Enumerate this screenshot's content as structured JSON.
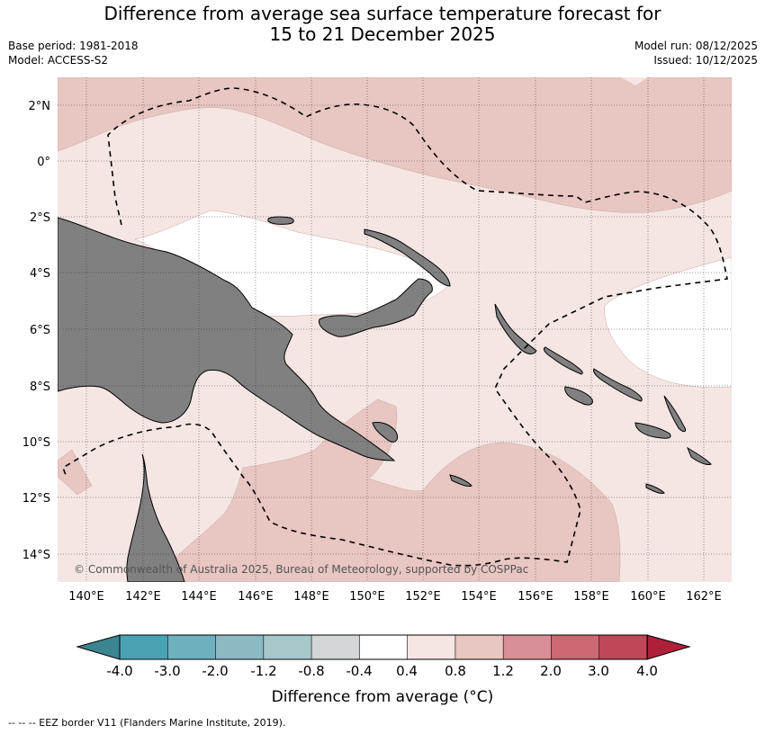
{
  "title_line1": "Difference from average sea surface temperature forecast for",
  "title_line2": "15 to 21 December 2025",
  "base_period": "Base period: 1981-2018",
  "model": "Model: ACCESS-S2",
  "model_run": "Model run: 08/12/2025",
  "issued": "Issued: 10/12/2025",
  "copyright": "© Commonwealth of Australia 2025, Bureau of Meteorology, supported by COSPPac",
  "footer_note": "--  --  -- EEZ border V11 (Flanders Marine Institute, 2019).",
  "lat_ticks": [
    "2°N",
    "0°",
    "2°S",
    "4°S",
    "6°S",
    "8°S",
    "10°S",
    "12°S",
    "14°S"
  ],
  "lon_ticks": [
    "140°E",
    "142°E",
    "144°E",
    "146°E",
    "148°E",
    "150°E",
    "152°E",
    "154°E",
    "156°E",
    "158°E",
    "160°E",
    "162°E"
  ],
  "colorbar": {
    "title": "Difference from average (°C)",
    "labels": [
      "-4.0",
      "-3.0",
      "-2.0",
      "-1.2",
      "-0.8",
      "-0.4",
      "0.4",
      "0.8",
      "1.2",
      "2.0",
      "3.0",
      "4.0"
    ],
    "colors": [
      "#4aa3b3",
      "#6fb0bf",
      "#8cb9c3",
      "#a8c7cb",
      "#d3d7d7",
      "#ffffff",
      "#f5e6e3",
      "#e8c6c1",
      "#d88f97",
      "#cb6872",
      "#c04758"
    ],
    "under_color": "#3b8591",
    "over_color": "#b01f3a"
  },
  "colors": {
    "land": "#808080",
    "anom_0_4_0_8": "#f5e6e3",
    "anom_0_8_1_2": "#e8c6c1",
    "neutral": "#ffffff"
  }
}
